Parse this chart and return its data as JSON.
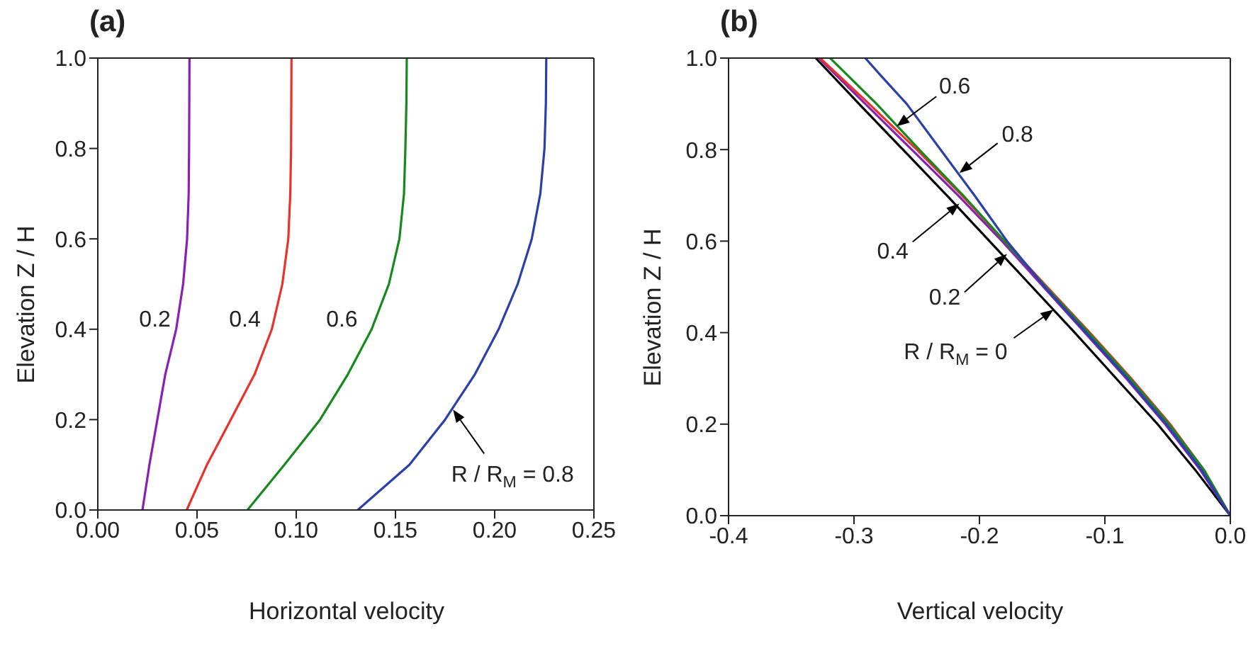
{
  "chart_data": [
    {
      "type": "line",
      "title": "(a)",
      "xlabel": "Horizontal velocity",
      "ylabel": "Elevation Z / H",
      "marker": "none",
      "xlim": [
        0,
        0.25
      ],
      "ylim": [
        0,
        1
      ],
      "xticks": [
        {
          "value": 0,
          "label": "0.00"
        },
        {
          "value": 0.05,
          "label": "0.05"
        },
        {
          "value": 0.1,
          "label": "0.10"
        },
        {
          "value": 0.15,
          "label": "0.15"
        },
        {
          "value": 0.2,
          "label": "0.20"
        },
        {
          "value": 0.25,
          "label": "0.25"
        }
      ],
      "yticks": [
        {
          "value": 0,
          "label": "0.0"
        },
        {
          "value": 0.2,
          "label": "0.2"
        },
        {
          "value": 0.4,
          "label": "0.4"
        },
        {
          "value": 0.6,
          "label": "0.6"
        },
        {
          "value": 0.8,
          "label": "0.8"
        },
        {
          "value": 1,
          "label": "1.0"
        }
      ],
      "series": [
        {
          "name": "0.2",
          "color": "#8a1fb5",
          "x": [
            0.0225,
            0.026,
            0.03,
            0.034,
            0.0395,
            0.043,
            0.045,
            0.0458,
            0.046,
            0.0462
          ],
          "values": [
            0,
            0.1,
            0.2,
            0.3,
            0.4,
            0.5,
            0.6,
            0.7,
            0.8,
            1.0
          ]
        },
        {
          "name": "0.4",
          "color": "#e8322a",
          "x": [
            0.0448,
            0.055,
            0.067,
            0.079,
            0.0877,
            0.093,
            0.096,
            0.097,
            0.0974,
            0.0976
          ],
          "values": [
            0,
            0.1,
            0.2,
            0.3,
            0.4,
            0.5,
            0.6,
            0.7,
            0.8,
            1.0
          ]
        },
        {
          "name": "0.6",
          "color": "#15891c",
          "x": [
            0.0754,
            0.094,
            0.112,
            0.126,
            0.138,
            0.1467,
            0.152,
            0.1543,
            0.155,
            0.1555,
            0.1557
          ],
          "values": [
            0,
            0.1,
            0.2,
            0.3,
            0.4,
            0.5,
            0.6,
            0.7,
            0.8,
            0.9,
            1.0
          ]
        },
        {
          "color": "#2a3faa",
          "x": [
            0.131,
            0.157,
            0.175,
            0.19,
            0.202,
            0.2116,
            0.2187,
            0.223,
            0.2251,
            0.2258,
            0.226
          ],
          "values": [
            0,
            0.1,
            0.2,
            0.3,
            0.4,
            0.5,
            0.6,
            0.7,
            0.8,
            0.9,
            1.0
          ]
        }
      ],
      "annotations": [
        {
          "text": "R / R$_{M}$ = 0.8",
          "x": 0.179,
          "y": 0.222
        }
      ]
    },
    {
      "type": "line",
      "title": "(b)",
      "xlabel": "Vertical velocity",
      "ylabel": "Elevation Z / H",
      "marker": "none",
      "xlim": [
        -0.4,
        0
      ],
      "ylim": [
        0,
        1
      ],
      "xticks": [
        {
          "value": -0.4,
          "label": "-0.4"
        },
        {
          "value": -0.3,
          "label": "-0.3"
        },
        {
          "value": -0.2,
          "label": "-0.2"
        },
        {
          "value": -0.1,
          "label": "-0.1"
        },
        {
          "value": 0,
          "label": "0.0"
        }
      ],
      "yticks": [
        {
          "value": 0,
          "label": "0.0"
        },
        {
          "value": 0.2,
          "label": "0.2"
        },
        {
          "value": 0.4,
          "label": "0.4"
        },
        {
          "value": 0.6,
          "label": "0.6"
        },
        {
          "value": 0.8,
          "label": "0.8"
        },
        {
          "value": 1,
          "label": "1.0"
        }
      ],
      "series": [
        {
          "color": "#000000",
          "x": [
            0,
            -0.028,
            -0.058,
            -0.091,
            -0.124,
            -0.158,
            -0.192,
            -0.226,
            -0.261,
            -0.296,
            -0.3305
          ],
          "values": [
            0,
            0.1,
            0.2,
            0.3,
            0.4,
            0.5,
            0.6,
            0.7,
            0.8,
            0.9,
            1.0
          ]
        },
        {
          "color": "#8a1fb5",
          "x": [
            0,
            -0.024,
            -0.052,
            -0.083,
            -0.116,
            -0.149,
            -0.182,
            -0.217,
            -0.254,
            -0.291,
            -0.328
          ],
          "values": [
            0,
            0.1,
            0.2,
            0.3,
            0.4,
            0.5,
            0.6,
            0.7,
            0.8,
            0.9,
            1.0
          ]
        },
        {
          "color": "#e8322a",
          "x": [
            0,
            -0.021,
            -0.048,
            -0.079,
            -0.112,
            -0.146,
            -0.18,
            -0.214,
            -0.25,
            -0.288,
            -0.327
          ],
          "values": [
            0,
            0.1,
            0.2,
            0.3,
            0.4,
            0.5,
            0.6,
            0.7,
            0.8,
            0.9,
            1.0
          ]
        },
        {
          "color": "#15891c",
          "x": [
            0,
            -0.021,
            -0.049,
            -0.08,
            -0.113,
            -0.147,
            -0.18,
            -0.213,
            -0.248,
            -0.282,
            -0.319
          ],
          "values": [
            0,
            0.1,
            0.2,
            0.3,
            0.4,
            0.5,
            0.6,
            0.7,
            0.8,
            0.9,
            1.0
          ]
        },
        {
          "color": "#2a3faa",
          "x": [
            0,
            -0.023,
            -0.051,
            -0.082,
            -0.115,
            -0.148,
            -0.178,
            -0.204,
            -0.231,
            -0.258,
            -0.278,
            -0.291
          ],
          "values": [
            0,
            0.1,
            0.2,
            0.3,
            0.4,
            0.5,
            0.6,
            0.7,
            0.8,
            0.9,
            0.96,
            1.0
          ]
        }
      ],
      "annotations": [
        {
          "text": "0.6",
          "x": -0.266,
          "y": 0.851
        },
        {
          "text": "0.8",
          "x": -0.216,
          "y": 0.749
        },
        {
          "text": "0.4",
          "x": -0.216,
          "y": 0.682
        },
        {
          "text": "0.2",
          "x": -0.178,
          "y": 0.572
        },
        {
          "text": "R / R$_{M}$ = 0",
          "x": -0.141,
          "y": 0.45
        }
      ]
    }
  ]
}
